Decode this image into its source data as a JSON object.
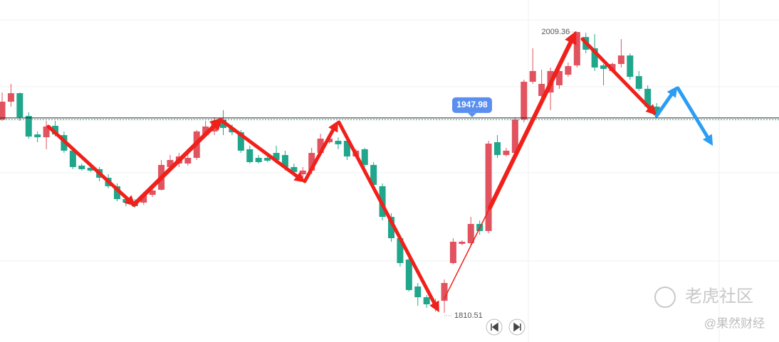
{
  "chart_data": {
    "type": "candlestick",
    "up_color": "#e0535f",
    "down_color": "#1fa68b",
    "ylim": [
      1789.8,
      2032
    ],
    "last_price": 1947.98,
    "ohlc": [
      [
        1947.4,
        1966.5,
        1946.4,
        1960.0
      ],
      [
        1960.0,
        1972.6,
        1956.5,
        1966.0
      ],
      [
        1966.0,
        1966.5,
        1946.4,
        1948.9
      ],
      [
        1949.9,
        1952.4,
        1933.8,
        1935.3
      ],
      [
        1936.8,
        1938.9,
        1931.3,
        1934.8
      ],
      [
        1934.8,
        1946.4,
        1926.3,
        1942.4
      ],
      [
        1942.9,
        1946.4,
        1935.3,
        1936.8
      ],
      [
        1936.3,
        1938.9,
        1923.7,
        1925.3
      ],
      [
        1925.3,
        1926.3,
        1912.2,
        1913.7
      ],
      [
        1914.7,
        1916.2,
        1911.2,
        1912.2
      ],
      [
        1913.2,
        1914.2,
        1910.2,
        1911.2
      ],
      [
        1912.2,
        1913.7,
        1903.6,
        1906.1
      ],
      [
        1906.1,
        1908.6,
        1898.6,
        1900.1
      ],
      [
        1900.1,
        1902.1,
        1889.5,
        1891.0
      ],
      [
        1891.0,
        1893.5,
        1886.0,
        1888.5
      ],
      [
        1889.5,
        1891.0,
        1885.0,
        1886.0
      ],
      [
        1888.5,
        1896.1,
        1887.0,
        1894.0
      ],
      [
        1894.0,
        1898.6,
        1892.5,
        1897.1
      ],
      [
        1897.6,
        1918.7,
        1897.1,
        1915.2
      ],
      [
        1913.7,
        1922.2,
        1911.2,
        1918.7
      ],
      [
        1916.2,
        1923.7,
        1913.7,
        1921.2
      ],
      [
        1916.2,
        1923.7,
        1914.7,
        1920.2
      ],
      [
        1920.2,
        1939.9,
        1918.7,
        1938.9
      ],
      [
        1936.3,
        1946.4,
        1935.3,
        1942.4
      ],
      [
        1938.9,
        1948.9,
        1936.3,
        1946.4
      ],
      [
        1947.4,
        1954.0,
        1936.3,
        1941.4
      ],
      [
        1941.4,
        1943.9,
        1936.3,
        1938.3
      ],
      [
        1938.3,
        1939.9,
        1923.7,
        1925.3
      ],
      [
        1926.3,
        1928.8,
        1916.2,
        1917.2
      ],
      [
        1920.2,
        1922.2,
        1916.2,
        1917.2
      ],
      [
        1920.2,
        1921.2,
        1917.2,
        1918.2
      ],
      [
        1923.7,
        1928.8,
        1916.2,
        1918.7
      ],
      [
        1922.2,
        1925.3,
        1911.2,
        1913.7
      ],
      [
        1913.7,
        1916.2,
        1907.1,
        1910.2
      ],
      [
        1908.6,
        1913.7,
        1906.1,
        1911.2
      ],
      [
        1911.2,
        1927.3,
        1908.6,
        1923.7
      ],
      [
        1923.7,
        1937.3,
        1922.2,
        1933.8
      ],
      [
        1931.3,
        1934.8,
        1930.3,
        1933.8
      ],
      [
        1932.3,
        1934.8,
        1926.3,
        1929.8
      ],
      [
        1932.3,
        1933.8,
        1918.7,
        1921.2
      ],
      [
        1921.2,
        1926.3,
        1920.2,
        1925.3
      ],
      [
        1926.3,
        1927.3,
        1913.7,
        1915.2
      ],
      [
        1915.2,
        1917.2,
        1900.1,
        1901.1
      ],
      [
        1900.1,
        1902.1,
        1875.9,
        1878.4
      ],
      [
        1878.4,
        1880.9,
        1860.8,
        1863.3
      ],
      [
        1863.3,
        1865.8,
        1843.2,
        1845.7
      ],
      [
        1848.2,
        1850.7,
        1825.6,
        1826.6
      ],
      [
        1829.1,
        1831.6,
        1815.5,
        1821.5
      ],
      [
        1821.5,
        1823.0,
        1814.0,
        1816.5
      ],
      [
        1818.0,
        1820.5,
        1811.5,
        1814.0
      ],
      [
        1819.0,
        1834.1,
        1810.51,
        1831.6
      ],
      [
        1845.7,
        1863.3,
        1844.7,
        1860.8
      ],
      [
        1859.3,
        1861.8,
        1858.3,
        1860.8
      ],
      [
        1859.8,
        1878.4,
        1858.3,
        1873.4
      ],
      [
        1873.4,
        1875.9,
        1865.8,
        1868.4
      ],
      [
        1868.4,
        1932.3,
        1866.9,
        1930.3
      ],
      [
        1931.3,
        1936.3,
        1920.2,
        1922.2
      ],
      [
        1922.2,
        1927.3,
        1921.2,
        1925.3
      ],
      [
        1923.7,
        1948.9,
        1922.2,
        1947.4
      ],
      [
        1947.4,
        1975.6,
        1945.4,
        1974.1
      ],
      [
        1974.1,
        1997.8,
        1972.6,
        1981.7
      ],
      [
        1964.0,
        1982.7,
        1961.5,
        1972.6
      ],
      [
        1966.5,
        1984.2,
        1954.0,
        1981.7
      ],
      [
        1971.6,
        1984.2,
        1969.1,
        1981.7
      ],
      [
        1979.1,
        1987.7,
        1977.6,
        1985.2
      ],
      [
        1985.7,
        2009.36,
        1984.2,
        2009.3
      ],
      [
        2005.8,
        2008.8,
        1994.2,
        1996.8
      ],
      [
        1997.8,
        2007.8,
        1981.7,
        1984.2
      ],
      [
        1985.7,
        1986.7,
        1971.6,
        1983.2
      ],
      [
        1981.7,
        1987.7,
        1980.6,
        1986.7
      ],
      [
        1986.7,
        2004.3,
        1984.2,
        1992.7
      ],
      [
        1992.7,
        1994.2,
        1975.6,
        1977.6
      ],
      [
        1978.1,
        1981.7,
        1967.6,
        1969.1
      ],
      [
        1969.1,
        1971.6,
        1954.0,
        1956.5
      ],
      [
        1956.5,
        1959.0,
        1948.9,
        1950.4
      ]
    ]
  },
  "watermark": {
    "brand": "老虎社区",
    "author": "@果然财经"
  }
}
